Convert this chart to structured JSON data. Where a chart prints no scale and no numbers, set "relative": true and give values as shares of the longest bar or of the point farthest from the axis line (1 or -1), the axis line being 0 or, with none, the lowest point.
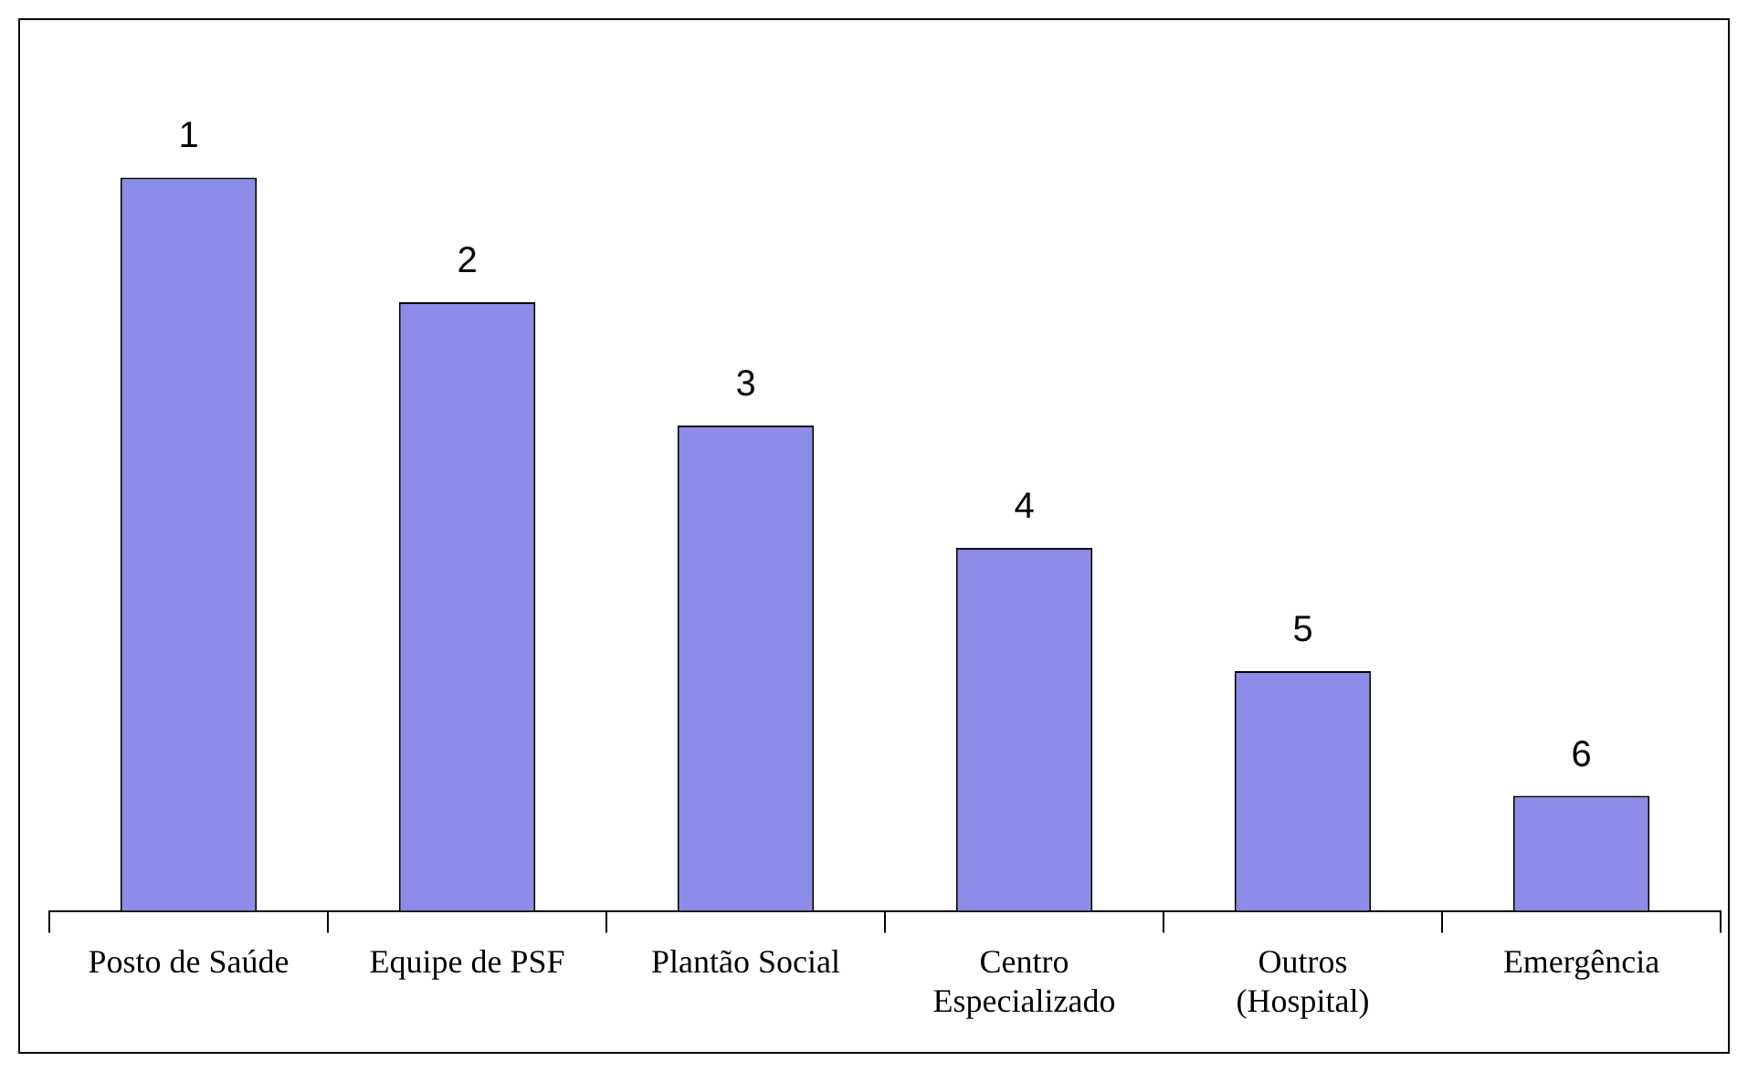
{
  "chart_data": {
    "type": "bar",
    "relative": true,
    "categories": [
      "Posto de Saúde",
      "Equipe de PSF",
      "Plantão Social",
      "Centro Especializado",
      "Outros (Hospital)",
      "Emergência"
    ],
    "values": [
      1,
      0.83,
      0.662,
      0.495,
      0.327,
      0.157
    ],
    "annotations": [
      {
        "text": "1",
        "x": "Posto de Saúde",
        "y": 1
      },
      {
        "text": "2",
        "x": "Equipe de PSF",
        "y": 0.83
      },
      {
        "text": "3",
        "x": "Plantão Social",
        "y": 0.662
      },
      {
        "text": "4",
        "x": "Centro Especializado",
        "y": 0.495
      },
      {
        "text": "5",
        "x": "Outros (Hospital)",
        "y": 0.327
      },
      {
        "text": "6",
        "x": "Emergência",
        "y": 0.157
      }
    ],
    "color": "#8c8ce8",
    "grid": false,
    "legend": false
  }
}
